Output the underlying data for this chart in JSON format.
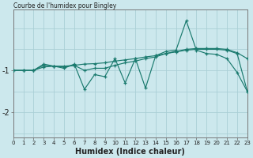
{
  "title": "Courbe de l'humidex pour Bingley",
  "xlabel": "Humidex (Indice chaleur)",
  "background_color": "#cce8ed",
  "grid_color": "#aacfd6",
  "line_color": "#1a7a6e",
  "x": [
    0,
    1,
    2,
    3,
    4,
    5,
    6,
    7,
    8,
    9,
    10,
    11,
    12,
    13,
    14,
    15,
    16,
    17,
    18,
    19,
    20,
    21,
    22,
    23
  ],
  "line1": [
    -1.0,
    -1.0,
    -1.0,
    -0.85,
    -0.9,
    -0.95,
    -0.85,
    -1.45,
    -1.1,
    -1.15,
    -0.72,
    -1.3,
    -0.72,
    -1.42,
    -0.65,
    -0.55,
    -0.52,
    0.18,
    -0.52,
    -0.6,
    -0.62,
    -0.72,
    -1.05,
    -1.5
  ],
  "line2": [
    -1.0,
    -1.0,
    -1.0,
    -0.88,
    -0.9,
    -0.92,
    -0.88,
    -1.0,
    -0.95,
    -0.95,
    -0.88,
    -0.82,
    -0.78,
    -0.72,
    -0.68,
    -0.6,
    -0.55,
    -0.5,
    -0.48,
    -0.48,
    -0.48,
    -0.5,
    -0.58,
    -0.72
  ],
  "line3": [
    -1.0,
    -1.0,
    -1.0,
    -0.92,
    -0.9,
    -0.9,
    -0.88,
    -0.85,
    -0.84,
    -0.82,
    -0.78,
    -0.75,
    -0.72,
    -0.68,
    -0.65,
    -0.6,
    -0.56,
    -0.52,
    -0.5,
    -0.5,
    -0.5,
    -0.52,
    -0.6,
    -1.5
  ],
  "ylim": [
    -2.6,
    0.45
  ],
  "yticks": [
    -2,
    -1
  ],
  "xlim": [
    0,
    23
  ],
  "xticks": [
    0,
    1,
    2,
    3,
    4,
    5,
    6,
    7,
    8,
    9,
    10,
    11,
    12,
    13,
    14,
    15,
    16,
    17,
    18,
    19,
    20,
    21,
    22,
    23
  ]
}
